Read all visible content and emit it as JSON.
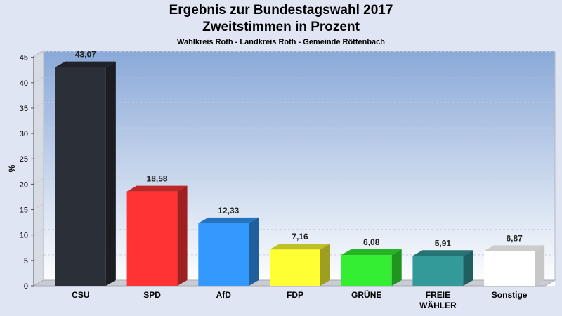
{
  "chart_data": {
    "type": "bar",
    "title": "Ergebnis zur Bundestagswahl 2017",
    "subtitle": "Zweitstimmen in Prozent",
    "subtitle2": "Wahlkreis Roth - Landkreis Roth - Gemeinde Röttenbach",
    "ylabel": "%",
    "ylim": [
      0,
      45
    ],
    "yticks": [
      0,
      5,
      10,
      15,
      20,
      25,
      30,
      35,
      40,
      45
    ],
    "grid": true,
    "categories": [
      "CSU",
      "SPD",
      "AfD",
      "FDP",
      "GRÜNE",
      "FREIE WÄHLER",
      "Sonstige"
    ],
    "category_lines": [
      [
        "CSU"
      ],
      [
        "SPD"
      ],
      [
        "AfD"
      ],
      [
        "FDP"
      ],
      [
        "GRÜNE"
      ],
      [
        "FREIE",
        "WÄHLER"
      ],
      [
        "Sonstige"
      ]
    ],
    "values": [
      43.07,
      18.58,
      12.33,
      7.16,
      6.08,
      5.91,
      6.87
    ],
    "value_labels": [
      "43,07",
      "18,58",
      "12,33",
      "7,16",
      "6,08",
      "5,91",
      "6,87"
    ],
    "colors": [
      "#2b2f38",
      "#ff3333",
      "#3399ff",
      "#ffff33",
      "#33ee33",
      "#339999",
      "#ffffff"
    ]
  }
}
